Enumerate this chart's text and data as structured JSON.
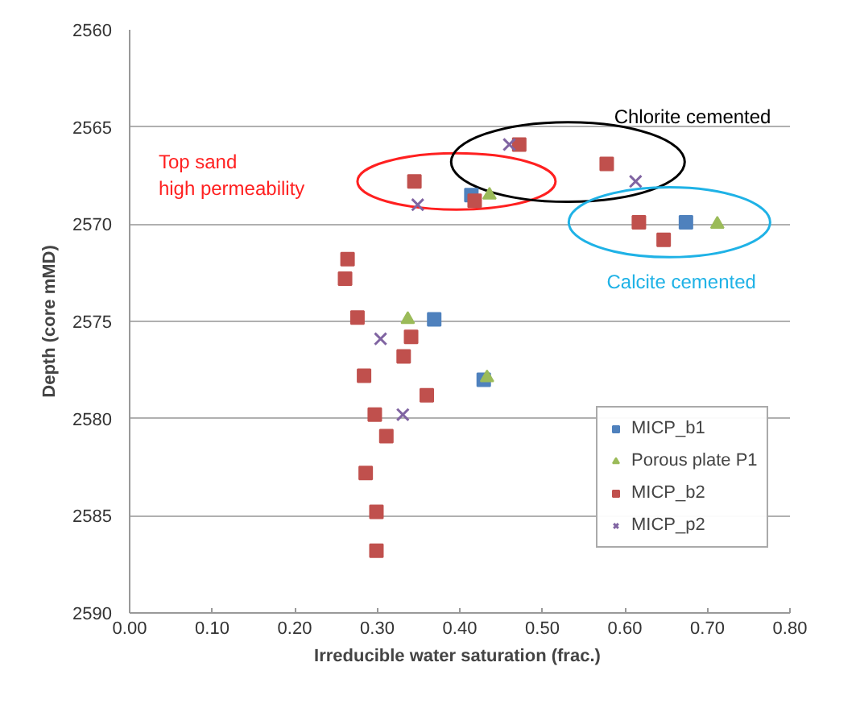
{
  "chart_data": {
    "type": "scatter",
    "xlabel": "Irreducible water saturation  (frac.)",
    "ylabel": "Depth (core mMD)",
    "xlim": [
      0,
      0.8
    ],
    "xticks": [
      {
        "value": 0,
        "label": "0.00"
      },
      {
        "value": 0.1,
        "label": "0.10"
      },
      {
        "value": 0.2,
        "label": "0.20"
      },
      {
        "value": 0.3,
        "label": "0.30"
      },
      {
        "value": 0.4,
        "label": "0.40"
      },
      {
        "value": 0.5,
        "label": "0.50"
      },
      {
        "value": 0.6,
        "label": "0.60"
      },
      {
        "value": 0.7,
        "label": "0.70"
      },
      {
        "value": 0.8,
        "label": "0.80"
      }
    ],
    "ylim": [
      2590,
      2560
    ],
    "yticks": [
      2560,
      2565,
      2570,
      2575,
      2580,
      2585,
      2590
    ],
    "grid": "y",
    "legend": "right",
    "series": [
      {
        "name": "MICP_b1",
        "color": "#4f81bd",
        "marker": "square",
        "x": [
          0.414,
          0.369,
          0.429,
          0.674
        ],
        "values": [
          2568.5,
          2574.9,
          2578,
          2569.9
        ]
      },
      {
        "name": "Porous plate P1",
        "color": "#9bbb59",
        "marker": "triangle",
        "x": [
          0.337,
          0.436,
          0.712,
          0.433
        ],
        "values": [
          2574.9,
          2568.5,
          2570,
          2577.9
        ]
      },
      {
        "name": "MICP_b2",
        "color": "#c0504d",
        "marker": "square",
        "x": [
          0.345,
          0.418,
          0.264,
          0.261,
          0.276,
          0.341,
          0.332,
          0.284,
          0.36,
          0.297,
          0.311,
          0.286,
          0.299,
          0.299,
          0.472,
          0.578,
          0.617,
          0.647
        ],
        "values": [
          2567.8,
          2568.8,
          2571.8,
          2572.8,
          2574.8,
          2575.8,
          2576.8,
          2577.8,
          2578.8,
          2579.8,
          2580.9,
          2582.8,
          2584.8,
          2586.8,
          2565.9,
          2566.9,
          2569.9,
          2570.8
        ]
      },
      {
        "name": "MICP_p2",
        "color": "#8064a2",
        "marker": "cross",
        "x": [
          0.349,
          0.304,
          0.331,
          0.46,
          0.613
        ],
        "values": [
          2569.0,
          2575.9,
          2579.8,
          2565.9,
          2567.8
        ]
      }
    ],
    "annotations": [
      "Top sand\nhigh permeability",
      "Chlorite cemented",
      "Calcite cemented"
    ]
  }
}
